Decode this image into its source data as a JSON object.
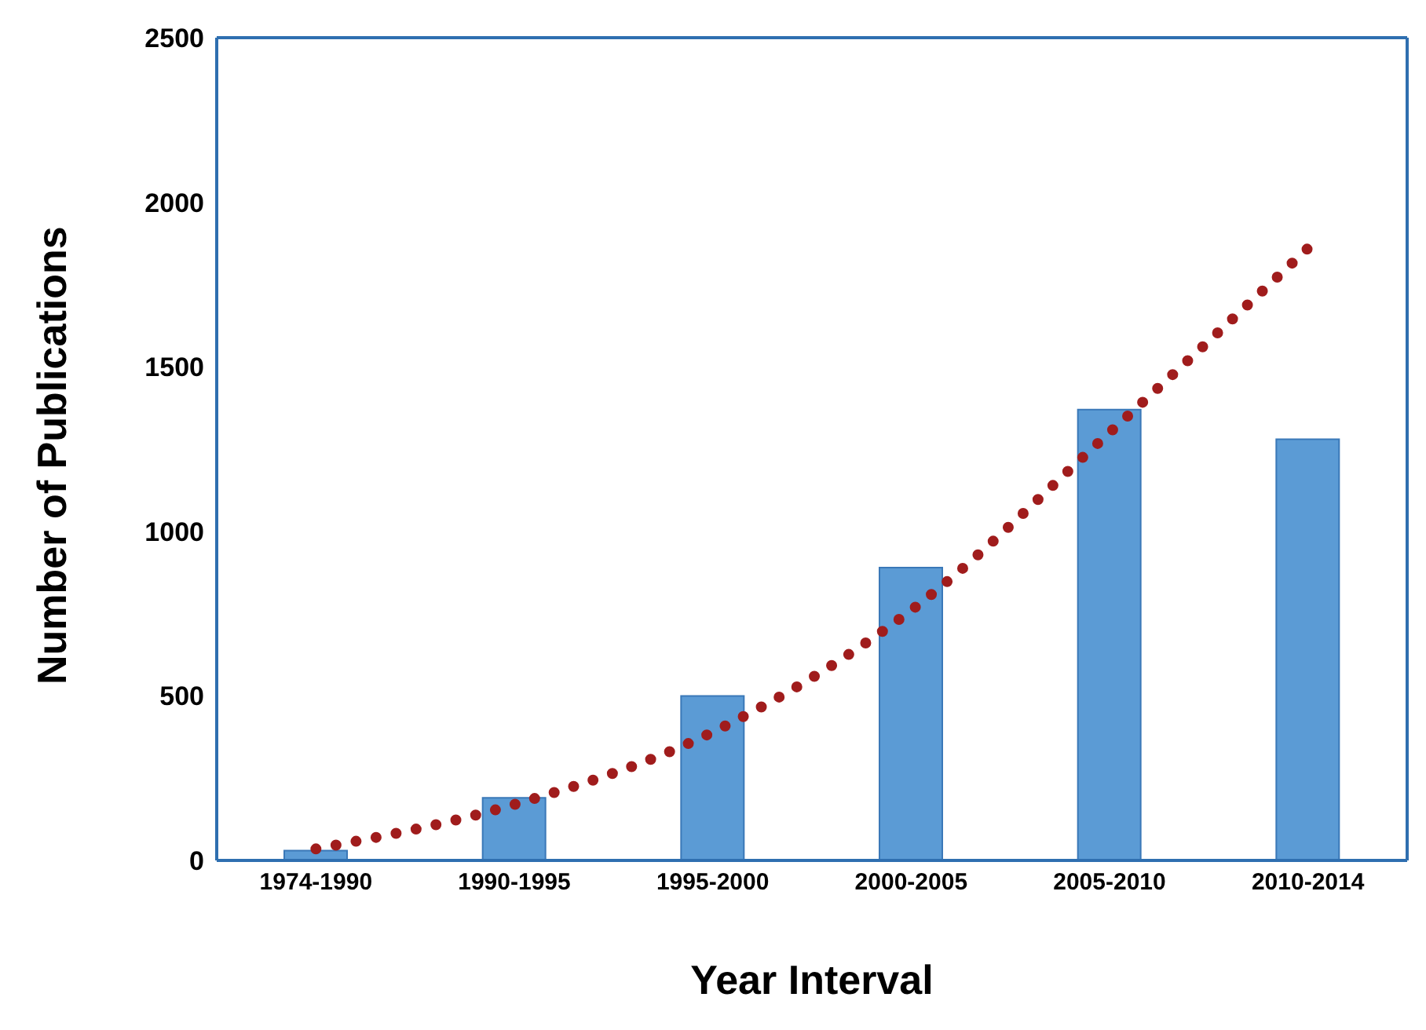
{
  "chart_data": {
    "type": "bar",
    "xlabel": "Year Interval",
    "ylabel": "Number of Publications",
    "categories": [
      "1974-1990",
      "1990-1995",
      "1995-2000",
      "2000-2005",
      "2005-2010",
      "2010-2014"
    ],
    "series": [
      {
        "color": "#5b9bd5",
        "values": [
          30,
          190,
          500,
          890,
          1370,
          1280
        ]
      },
      {
        "type": "line",
        "color": "#a01c1c",
        "values": [
          35,
          170,
          390,
          760,
          1300,
          1860
        ],
        "line_style": "dotted",
        "marker": "none"
      }
    ],
    "ylim": [
      0,
      2500
    ],
    "yticks": [
      0,
      500,
      1000,
      1500,
      2000,
      2500
    ],
    "grid": false,
    "legend": false
  }
}
